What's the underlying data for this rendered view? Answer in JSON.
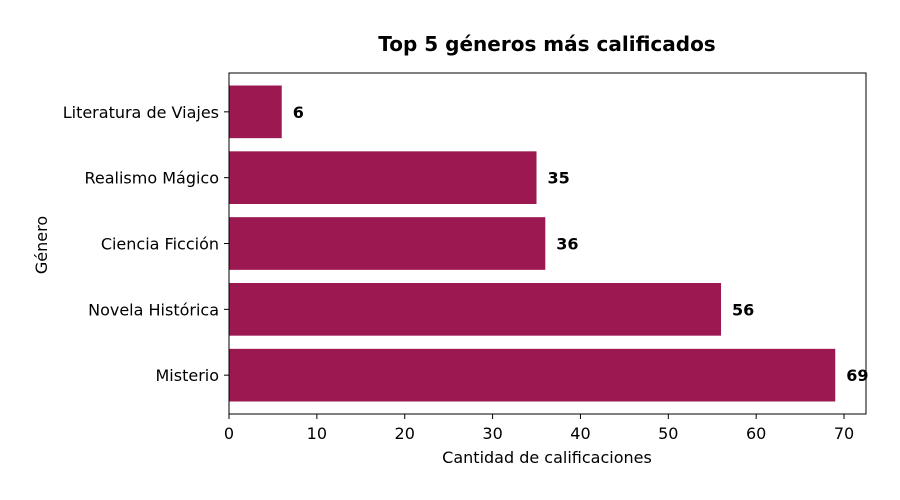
{
  "chart_data": {
    "type": "bar",
    "orientation": "horizontal",
    "title": "Top 5 géneros más calificados",
    "xlabel": "Cantidad de calificaciones",
    "ylabel": "Género",
    "categories": [
      "Misterio",
      "Novela Histórica",
      "Ciencia Ficción",
      "Realismo Mágico",
      "Literatura de Viajes"
    ],
    "values": [
      69,
      56,
      36,
      35,
      6
    ],
    "value_labels": [
      "69",
      "56",
      "36",
      "35",
      "6"
    ],
    "xlim": [
      0,
      72.5
    ],
    "xticks": [
      0,
      10,
      20,
      30,
      40,
      50,
      60,
      70
    ],
    "xtick_labels": [
      "0",
      "10",
      "20",
      "30",
      "40",
      "50",
      "60",
      "70"
    ],
    "bar_color": "#9b1950",
    "grid": false,
    "legend": "none"
  }
}
